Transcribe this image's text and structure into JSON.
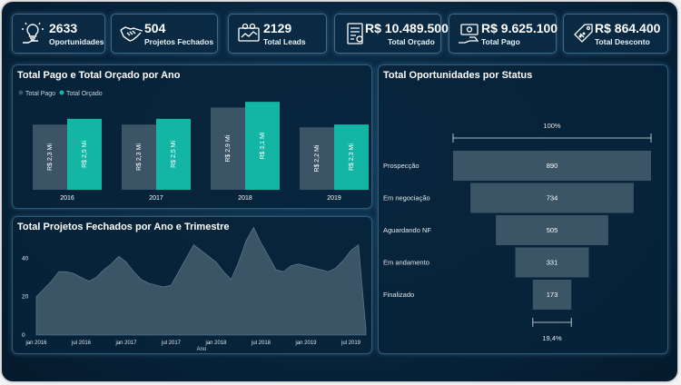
{
  "kpis": [
    {
      "value": "2633",
      "label": "Oportunidades",
      "icon": "lightbulb-hand-icon"
    },
    {
      "value": "504",
      "label": "Projetos Fechados",
      "icon": "handshake-icon"
    },
    {
      "value": "2129",
      "label": "Total Leads",
      "icon": "leads-icon"
    },
    {
      "value": "R$ 10.489.500",
      "label": "Total Orçado",
      "icon": "budget-document-icon"
    },
    {
      "value": "R$ 9.625.100",
      "label": "Total Pago",
      "icon": "money-hand-icon"
    },
    {
      "value": "R$ 864.400",
      "label": "Total Desconto",
      "icon": "discount-tag-icon"
    }
  ],
  "colors": {
    "pago": "#3b5466",
    "orcado": "#13b5a5",
    "area": "#3b5466",
    "funnel": "#3b5466"
  },
  "chart_data": [
    {
      "type": "bar",
      "title": "Total Pago e Total Orçado por Ano",
      "categories": [
        "2016",
        "2017",
        "2018",
        "2019"
      ],
      "series": [
        {
          "name": "Total Pago",
          "values": [
            2.3,
            2.3,
            2.9,
            2.2
          ],
          "labels": [
            "R$ 2,3 Mi",
            "R$ 2,3 Mi",
            "R$ 2,9 Mi",
            "R$ 2,2 Mi"
          ]
        },
        {
          "name": "Total Orçado",
          "values": [
            2.5,
            2.5,
            3.1,
            2.3
          ],
          "labels": [
            "R$ 2,5 Mi",
            "R$ 2,5 Mi",
            "R$ 3,1 Mi",
            "R$ 2,3 Mi"
          ]
        }
      ],
      "ylim": [
        0,
        3.2
      ],
      "legend": "top-left"
    },
    {
      "type": "area",
      "title": "Total Projetos Fechados por Ano e Trimestre",
      "xlabel": "Ano",
      "x": [
        "jan 2016",
        "fev 2016",
        "mar 2016",
        "abr 2016",
        "mai 2016",
        "jun 2016",
        "jul 2016",
        "ago 2016",
        "set 2016",
        "out 2016",
        "nov 2016",
        "dez 2016",
        "jan 2017",
        "fev 2017",
        "mar 2017",
        "abr 2017",
        "mai 2017",
        "jun 2017",
        "jul 2017",
        "ago 2017",
        "set 2017",
        "out 2017",
        "nov 2017",
        "dez 2017",
        "jan 2018",
        "fev 2018",
        "mar 2018",
        "abr 2018",
        "mai 2018",
        "jun 2018",
        "jul 2018",
        "ago 2018",
        "set 2018",
        "out 2018",
        "nov 2018",
        "dez 2018",
        "jan 2019",
        "fev 2019",
        "mar 2019",
        "abr 2019",
        "mai 2019",
        "jun 2019",
        "jul 2019",
        "ago 2019",
        "set 2019"
      ],
      "values": [
        20,
        24,
        28,
        33,
        33,
        32,
        30,
        28,
        30,
        34,
        37,
        41,
        38,
        33,
        29,
        27,
        26,
        25,
        26,
        33,
        40,
        47,
        44,
        41,
        38,
        33,
        29,
        38,
        49,
        56,
        48,
        41,
        34,
        33,
        36,
        37,
        36,
        35,
        34,
        33,
        35,
        39,
        44,
        47,
        3
      ],
      "yticks": [
        0,
        20,
        40
      ],
      "ylim": [
        0,
        52
      ],
      "xtick_labels": [
        "jan 2016",
        "jul 2016",
        "jan 2017",
        "jul 2017",
        "jan 2018",
        "jul 2018",
        "jan 2019",
        "jul 2019"
      ]
    },
    {
      "type": "funnel",
      "title": "Total Oportunidades por Status",
      "categories": [
        "Prospecção",
        "Em negociação",
        "Aguardando NF",
        "Em andamento",
        "Finalizado"
      ],
      "values": [
        890,
        734,
        505,
        331,
        173
      ],
      "top_percent": "100%",
      "bottom_percent": "19,4%"
    }
  ]
}
